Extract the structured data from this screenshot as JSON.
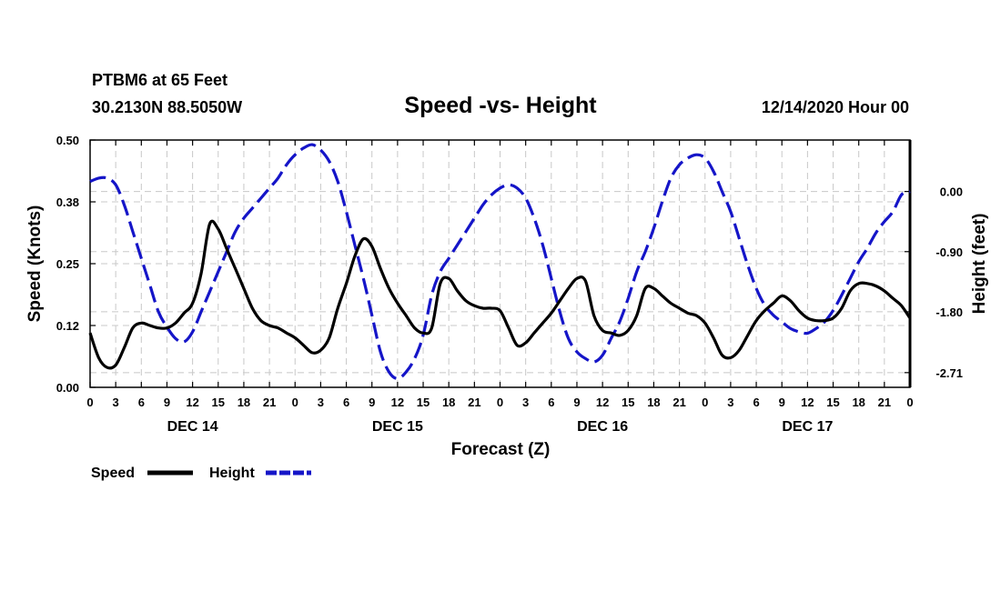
{
  "header": {
    "station": "PTBM6 at 65 Feet",
    "coords": "30.2130N 88.5050W",
    "title": "Speed -vs- Height",
    "datetime": "12/14/2020 Hour 00"
  },
  "legend": {
    "speed_label": "Speed",
    "height_label": "Height"
  },
  "chart_data": {
    "type": "line",
    "title": "Speed -vs- Height",
    "xlabel": "Forecast (Z)",
    "ylabel_left": "Speed (Knots)",
    "ylabel_right": "Height (feet)",
    "x_unit": "hours since 12/14/2020 00Z",
    "xlim": [
      0,
      96
    ],
    "x_tick_values": [
      0,
      3,
      6,
      9,
      12,
      15,
      18,
      21,
      24,
      27,
      30,
      33,
      36,
      39,
      42,
      45,
      48,
      51,
      54,
      57,
      60,
      63,
      66,
      69,
      72,
      75,
      78,
      81,
      84,
      87,
      90,
      93,
      96
    ],
    "x_tick_labels": [
      "0",
      "3",
      "6",
      "9",
      "12",
      "15",
      "18",
      "21",
      "0",
      "3",
      "6",
      "9",
      "12",
      "15",
      "18",
      "21",
      "0",
      "3",
      "6",
      "9",
      "12",
      "15",
      "18",
      "21",
      "0",
      "3",
      "6",
      "9",
      "12",
      "15",
      "18",
      "21",
      "0"
    ],
    "day_labels": [
      {
        "label": "DEC 14",
        "x": 12
      },
      {
        "label": "DEC 15",
        "x": 36
      },
      {
        "label": "DEC 16",
        "x": 60
      },
      {
        "label": "DEC 17",
        "x": 84
      }
    ],
    "y_left": {
      "lim": [
        0,
        0.5
      ],
      "ticks": [
        0,
        0.125,
        0.25,
        0.375,
        0.5
      ],
      "tick_labels": [
        "0.00",
        "0.12",
        "0.25",
        "0.38",
        "0.50"
      ]
    },
    "y_right": {
      "lim": [
        -2.93,
        0.77
      ],
      "ticks": [
        0,
        -0.9,
        -1.8,
        -2.71
      ],
      "tick_labels": [
        "0.00",
        "-0.90",
        "-1.80",
        "-2.71"
      ]
    },
    "grid": true,
    "legend_position": "bottom-left",
    "series": [
      {
        "name": "Speed",
        "axis": "left",
        "color": "#000000",
        "style": "solid",
        "x": [
          0,
          1,
          2,
          3,
          4,
          5,
          6,
          7,
          8,
          9,
          10,
          11,
          12,
          13,
          14,
          15,
          16,
          17,
          18,
          19,
          20,
          21,
          22,
          23,
          24,
          25,
          26,
          27,
          28,
          29,
          30,
          31,
          32,
          33,
          34,
          35,
          36,
          37,
          38,
          39,
          40,
          41,
          42,
          43,
          44,
          45,
          46,
          47,
          48,
          49,
          50,
          51,
          52,
          53,
          54,
          55,
          56,
          57,
          58,
          59,
          60,
          61,
          62,
          63,
          64,
          65,
          66,
          67,
          68,
          69,
          70,
          71,
          72,
          73,
          74,
          75,
          76,
          77,
          78,
          79,
          80,
          81,
          82,
          83,
          84,
          85,
          86,
          87,
          88,
          89,
          90,
          91,
          92,
          93,
          94,
          95,
          96
        ],
        "values": [
          0.11,
          0.06,
          0.04,
          0.045,
          0.08,
          0.12,
          0.13,
          0.125,
          0.12,
          0.12,
          0.13,
          0.15,
          0.17,
          0.23,
          0.33,
          0.32,
          0.28,
          0.24,
          0.2,
          0.16,
          0.135,
          0.125,
          0.12,
          0.11,
          0.1,
          0.085,
          0.07,
          0.075,
          0.1,
          0.16,
          0.21,
          0.265,
          0.3,
          0.285,
          0.24,
          0.2,
          0.17,
          0.145,
          0.12,
          0.11,
          0.12,
          0.21,
          0.22,
          0.195,
          0.175,
          0.165,
          0.16,
          0.16,
          0.155,
          0.12,
          0.085,
          0.09,
          0.11,
          0.13,
          0.15,
          0.175,
          0.2,
          0.22,
          0.215,
          0.145,
          0.115,
          0.11,
          0.105,
          0.115,
          0.145,
          0.2,
          0.2,
          0.185,
          0.17,
          0.16,
          0.15,
          0.145,
          0.13,
          0.1,
          0.065,
          0.06,
          0.075,
          0.105,
          0.135,
          0.155,
          0.17,
          0.185,
          0.175,
          0.155,
          0.14,
          0.135,
          0.135,
          0.14,
          0.16,
          0.195,
          0.21,
          0.21,
          0.205,
          0.195,
          0.18,
          0.165,
          0.14
        ]
      },
      {
        "name": "Height",
        "axis": "right",
        "color": "#1515c8",
        "style": "dashed",
        "x": [
          0,
          1,
          2,
          3,
          4,
          5,
          6,
          7,
          8,
          9,
          10,
          11,
          12,
          13,
          14,
          15,
          16,
          17,
          18,
          19,
          20,
          21,
          22,
          23,
          24,
          25,
          26,
          27,
          28,
          29,
          30,
          31,
          32,
          33,
          34,
          35,
          36,
          37,
          38,
          39,
          40,
          41,
          42,
          43,
          44,
          45,
          46,
          47,
          48,
          49,
          50,
          51,
          52,
          53,
          54,
          55,
          56,
          57,
          58,
          59,
          60,
          61,
          62,
          63,
          64,
          65,
          66,
          67,
          68,
          69,
          70,
          71,
          72,
          73,
          74,
          75,
          76,
          77,
          78,
          79,
          80,
          81,
          82,
          83,
          84,
          85,
          86,
          87,
          88,
          89,
          90,
          91,
          92,
          93,
          94,
          95,
          96
        ],
        "values": [
          0.15,
          0.2,
          0.2,
          0.1,
          -0.2,
          -0.6,
          -1.0,
          -1.4,
          -1.8,
          -2.03,
          -2.2,
          -2.25,
          -2.1,
          -1.8,
          -1.5,
          -1.2,
          -0.9,
          -0.6,
          -0.4,
          -0.25,
          -0.1,
          0.05,
          0.2,
          0.4,
          0.55,
          0.65,
          0.7,
          0.62,
          0.45,
          0.15,
          -0.3,
          -0.8,
          -1.3,
          -1.85,
          -2.4,
          -2.7,
          -2.8,
          -2.7,
          -2.5,
          -2.15,
          -1.55,
          -1.2,
          -1.0,
          -0.8,
          -0.6,
          -0.4,
          -0.2,
          -0.05,
          0.05,
          0.1,
          0.05,
          -0.1,
          -0.4,
          -0.8,
          -1.3,
          -1.8,
          -2.2,
          -2.4,
          -2.5,
          -2.55,
          -2.45,
          -2.2,
          -1.95,
          -1.6,
          -1.2,
          -0.9,
          -0.55,
          -0.15,
          0.2,
          0.4,
          0.5,
          0.55,
          0.5,
          0.3,
          0.0,
          -0.3,
          -0.7,
          -1.1,
          -1.45,
          -1.7,
          -1.85,
          -1.95,
          -2.05,
          -2.1,
          -2.12,
          -2.05,
          -1.95,
          -1.78,
          -1.55,
          -1.3,
          -1.05,
          -0.85,
          -0.62,
          -0.45,
          -0.3,
          -0.05,
          0.0
        ]
      }
    ]
  }
}
